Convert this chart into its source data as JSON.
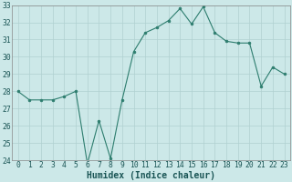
{
  "xlabel": "Humidex (Indice chaleur)",
  "x": [
    0,
    1,
    2,
    3,
    4,
    5,
    6,
    7,
    8,
    9,
    10,
    11,
    12,
    13,
    14,
    15,
    16,
    17,
    18,
    19,
    20,
    21,
    22,
    23
  ],
  "y": [
    28,
    27.5,
    27.5,
    27.5,
    27.7,
    28,
    23.8,
    26.3,
    24.1,
    27.5,
    30.3,
    31.4,
    31.7,
    32.1,
    32.8,
    31.9,
    32.9,
    31.4,
    30.9,
    30.8,
    30.8,
    28.3,
    29.4,
    29
  ],
  "ylim": [
    24,
    33
  ],
  "yticks": [
    24,
    25,
    26,
    27,
    28,
    29,
    30,
    31,
    32,
    33
  ],
  "line_color": "#2d7d6e",
  "marker_color": "#2d7d6e",
  "bg_color": "#cce8e8",
  "grid_color": "#b0d0d0",
  "axis_label_color": "#1a5555",
  "tick_color": "#1a5555",
  "tick_fontsize": 5.8,
  "xlabel_fontsize": 7.0
}
